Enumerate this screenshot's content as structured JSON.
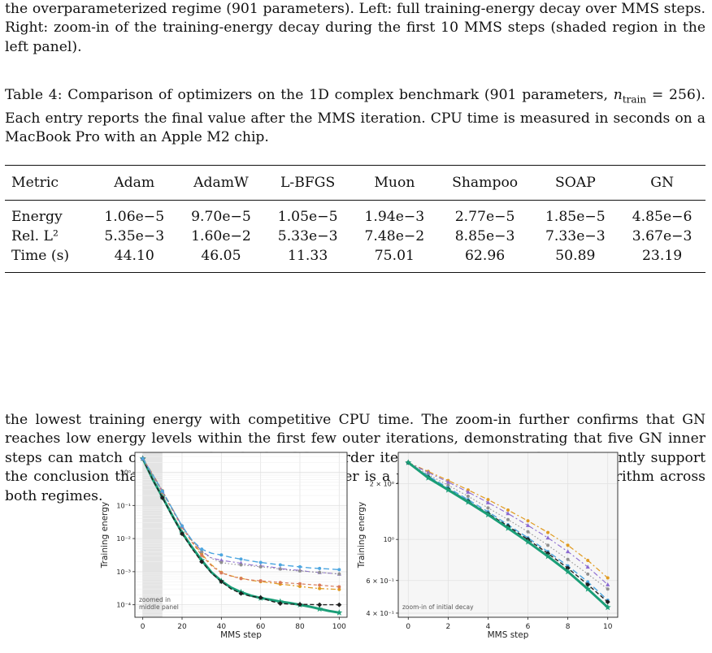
{
  "top_text": "the overparameterized regime (901 parameters). Left: full training-energy decay over MMS steps. Right: zoom-in of the training-energy decay during the first 10 MMS steps (shaded region in the left panel).",
  "caption": {
    "lead": "Table 4: Comparison of optimizers on the 1D complex benchmark (901 parameters, ",
    "ntrain": "n",
    "ntrain_sub": "train",
    "rest": " = 256). Each entry reports the final value after the MMS iteration. CPU time is measured in seconds on a MacBook Pro with an Apple M2 chip."
  },
  "table": {
    "headers": [
      "Metric",
      "Adam",
      "AdamW",
      "L-BFGS",
      "Muon",
      "Shampoo",
      "SOAP",
      "GN"
    ],
    "rows": [
      [
        "Energy",
        "1.06e−5",
        "9.70e−5",
        "1.05e−5",
        "1.94e−3",
        "2.77e−5",
        "1.85e−5",
        "4.85e−6"
      ],
      [
        "Rel. L²",
        "5.35e−3",
        "1.60e−2",
        "5.33e−3",
        "7.48e−2",
        "8.85e−3",
        "7.33e−3",
        "3.67e−3"
      ],
      [
        "Time (s)",
        "44.10",
        "46.05",
        "11.33",
        "75.01",
        "62.96",
        "50.89",
        "23.19"
      ]
    ]
  },
  "body_text": "the lowest training energy with competitive CPU time. The zoom-in further confirms that GN reaches low energy levels within the first few outer iterations, demonstrating that five GN inner steps can match or surpass hundreds of first-order iterations. These results consistently support the conclusion that MMS with a GN inner solver is a practical and competitive algorithm across both regimes.",
  "colors": {
    "gn": "#1a9e77",
    "orange": "#e09a20",
    "purple": "#8a6ad0",
    "blue": "#4da6e0",
    "gray": "#909090",
    "black": "#202020",
    "salmon": "#d87a5a"
  },
  "chart_data": [
    {
      "type": "line",
      "title": "",
      "xlabel": "MMS step",
      "ylabel": "Training energy",
      "xlim": [
        -4,
        104
      ],
      "yscale": "log",
      "ylim": [
        4.2e-05,
        4.0
      ],
      "xticks": [
        "0",
        "20",
        "40",
        "60",
        "80",
        "100"
      ],
      "yticks": [
        "10⁰",
        "10⁻¹",
        "10⁻²",
        "10⁻³",
        "10⁻⁴"
      ],
      "annotation": "zoomed in\nmiddle panel",
      "shaded_x": [
        0,
        10
      ],
      "series": [
        {
          "color_key": "gn",
          "x": [
            0,
            5,
            10,
            15,
            20,
            25,
            30,
            35,
            40,
            45,
            50,
            55,
            60,
            65,
            70,
            75,
            80,
            85,
            90,
            95,
            100
          ],
          "y": [
            2.6,
            0.62,
            0.18,
            0.05,
            0.015,
            0.0055,
            0.0022,
            0.00095,
            0.00052,
            0.00033,
            0.00024,
            0.00019,
            0.00016,
            0.000142,
            0.000125,
            0.000113,
            0.0001,
            8.8e-05,
            7.5e-05,
            6.5e-05,
            5.8e-05
          ]
        },
        {
          "color_key": "black",
          "x": [
            0,
            5,
            10,
            15,
            20,
            25,
            30,
            35,
            40,
            45,
            50,
            55,
            60,
            65,
            70,
            75,
            80,
            85,
            90,
            95,
            100
          ],
          "y": [
            2.6,
            0.6,
            0.17,
            0.048,
            0.014,
            0.005,
            0.002,
            0.0009,
            0.0005,
            0.0003,
            0.00022,
            0.00018,
            0.000165,
            0.00013,
            0.00011,
            0.000105,
            0.000103,
            0.000102,
            0.0001,
            0.0001,
            0.0001
          ]
        },
        {
          "color_key": "orange",
          "x": [
            0,
            5,
            10,
            15,
            20,
            25,
            30,
            35,
            40,
            45,
            50,
            55,
            60,
            65,
            70,
            75,
            80,
            85,
            90,
            95,
            100
          ],
          "y": [
            2.6,
            0.9,
            0.28,
            0.082,
            0.024,
            0.0085,
            0.0034,
            0.0016,
            0.00095,
            0.00075,
            0.00063,
            0.00055,
            0.0005,
            0.00046,
            0.00042,
            0.00039,
            0.00036,
            0.00033,
            0.00031,
            0.0003,
            0.00029
          ]
        },
        {
          "color_key": "salmon",
          "x": [
            0,
            5,
            10,
            15,
            20,
            25,
            30,
            35,
            40,
            45,
            50,
            55,
            60,
            65,
            70,
            75,
            80,
            85,
            90,
            95,
            100
          ],
          "y": [
            2.6,
            0.8,
            0.25,
            0.074,
            0.022,
            0.0078,
            0.0031,
            0.0015,
            0.00092,
            0.00073,
            0.00062,
            0.00056,
            0.00053,
            0.0005,
            0.00047,
            0.00045,
            0.00043,
            0.00041,
            0.00039,
            0.00037,
            0.00035
          ]
        },
        {
          "color_key": "purple",
          "x": [
            0,
            5,
            10,
            15,
            20,
            25,
            30,
            35,
            40,
            45,
            50,
            55,
            60,
            65,
            70,
            75,
            80,
            85,
            90,
            95,
            100
          ],
          "y": [
            2.6,
            0.85,
            0.27,
            0.08,
            0.024,
            0.009,
            0.0042,
            0.0026,
            0.0022,
            0.002,
            0.0018,
            0.0016,
            0.0015,
            0.0014,
            0.00125,
            0.00115,
            0.0011,
            0.001,
            0.00095,
            0.0009,
            0.00085
          ]
        },
        {
          "color_key": "gray",
          "x": [
            0,
            5,
            10,
            15,
            20,
            25,
            30,
            35,
            40,
            45,
            50,
            55,
            60,
            65,
            70,
            75,
            80,
            85,
            90,
            95,
            100
          ],
          "y": [
            2.6,
            0.85,
            0.27,
            0.08,
            0.024,
            0.0088,
            0.004,
            0.0025,
            0.0019,
            0.0017,
            0.0016,
            0.0015,
            0.0014,
            0.0013,
            0.0012,
            0.0011,
            0.00105,
            0.001,
            0.00095,
            0.0009,
            0.00085
          ]
        },
        {
          "color_key": "blue",
          "x": [
            0,
            5,
            10,
            15,
            20,
            25,
            30,
            35,
            40,
            45,
            50,
            55,
            60,
            65,
            70,
            75,
            80,
            85,
            90,
            95,
            100
          ],
          "y": [
            2.6,
            0.85,
            0.27,
            0.08,
            0.024,
            0.009,
            0.0048,
            0.0036,
            0.0032,
            0.0027,
            0.0024,
            0.0021,
            0.0019,
            0.00175,
            0.0016,
            0.0015,
            0.0014,
            0.0013,
            0.00125,
            0.0012,
            0.00115
          ]
        }
      ]
    },
    {
      "type": "line",
      "title": "",
      "xlabel": "MMS step",
      "ylabel": "Training energy",
      "xlim": [
        -0.5,
        10.5
      ],
      "yscale": "log",
      "ylim": [
        0.38,
        2.95
      ],
      "xticks": [
        "0",
        "2",
        "4",
        "6",
        "8",
        "10"
      ],
      "yticks": [
        "2 × 10⁰",
        "10⁰",
        "6 × 10⁻¹",
        "4 × 10⁻¹"
      ],
      "annotation": "zoom-in of initial decay",
      "series": [
        {
          "color_key": "orange",
          "x": [
            0,
            1,
            2,
            3,
            4,
            5,
            6,
            7,
            8,
            9,
            10
          ],
          "y": [
            2.6,
            2.33,
            2.08,
            1.85,
            1.64,
            1.44,
            1.26,
            1.09,
            0.93,
            0.77,
            0.62
          ]
        },
        {
          "color_key": "purple",
          "x": [
            0,
            1,
            2,
            3,
            4,
            5,
            6,
            7,
            8,
            9,
            10
          ],
          "y": [
            2.6,
            2.3,
            2.04,
            1.8,
            1.58,
            1.38,
            1.19,
            1.02,
            0.86,
            0.71,
            0.57
          ]
        },
        {
          "color_key": "gray",
          "x": [
            0,
            1,
            2,
            3,
            4,
            5,
            6,
            7,
            8,
            9,
            10
          ],
          "y": [
            2.6,
            2.24,
            1.96,
            1.71,
            1.48,
            1.28,
            1.1,
            0.93,
            0.78,
            0.65,
            0.54
          ]
        },
        {
          "color_key": "blue",
          "x": [
            0,
            1,
            2,
            3,
            4,
            5,
            6,
            7,
            8,
            9,
            10
          ],
          "y": [
            2.6,
            2.2,
            1.9,
            1.64,
            1.41,
            1.2,
            1.02,
            0.86,
            0.72,
            0.59,
            0.47
          ]
        },
        {
          "color_key": "black",
          "x": [
            0,
            1,
            2,
            3,
            4,
            5,
            6,
            7,
            8,
            9,
            10
          ],
          "y": [
            2.6,
            2.17,
            1.87,
            1.61,
            1.38,
            1.18,
            1.0,
            0.84,
            0.7,
            0.57,
            0.46
          ]
        },
        {
          "color_key": "gn",
          "x": [
            0,
            1,
            2,
            3,
            4,
            5,
            6,
            7,
            8,
            9,
            10
          ],
          "y": [
            2.6,
            2.15,
            1.85,
            1.59,
            1.36,
            1.15,
            0.97,
            0.81,
            0.67,
            0.54,
            0.43
          ]
        }
      ]
    }
  ]
}
